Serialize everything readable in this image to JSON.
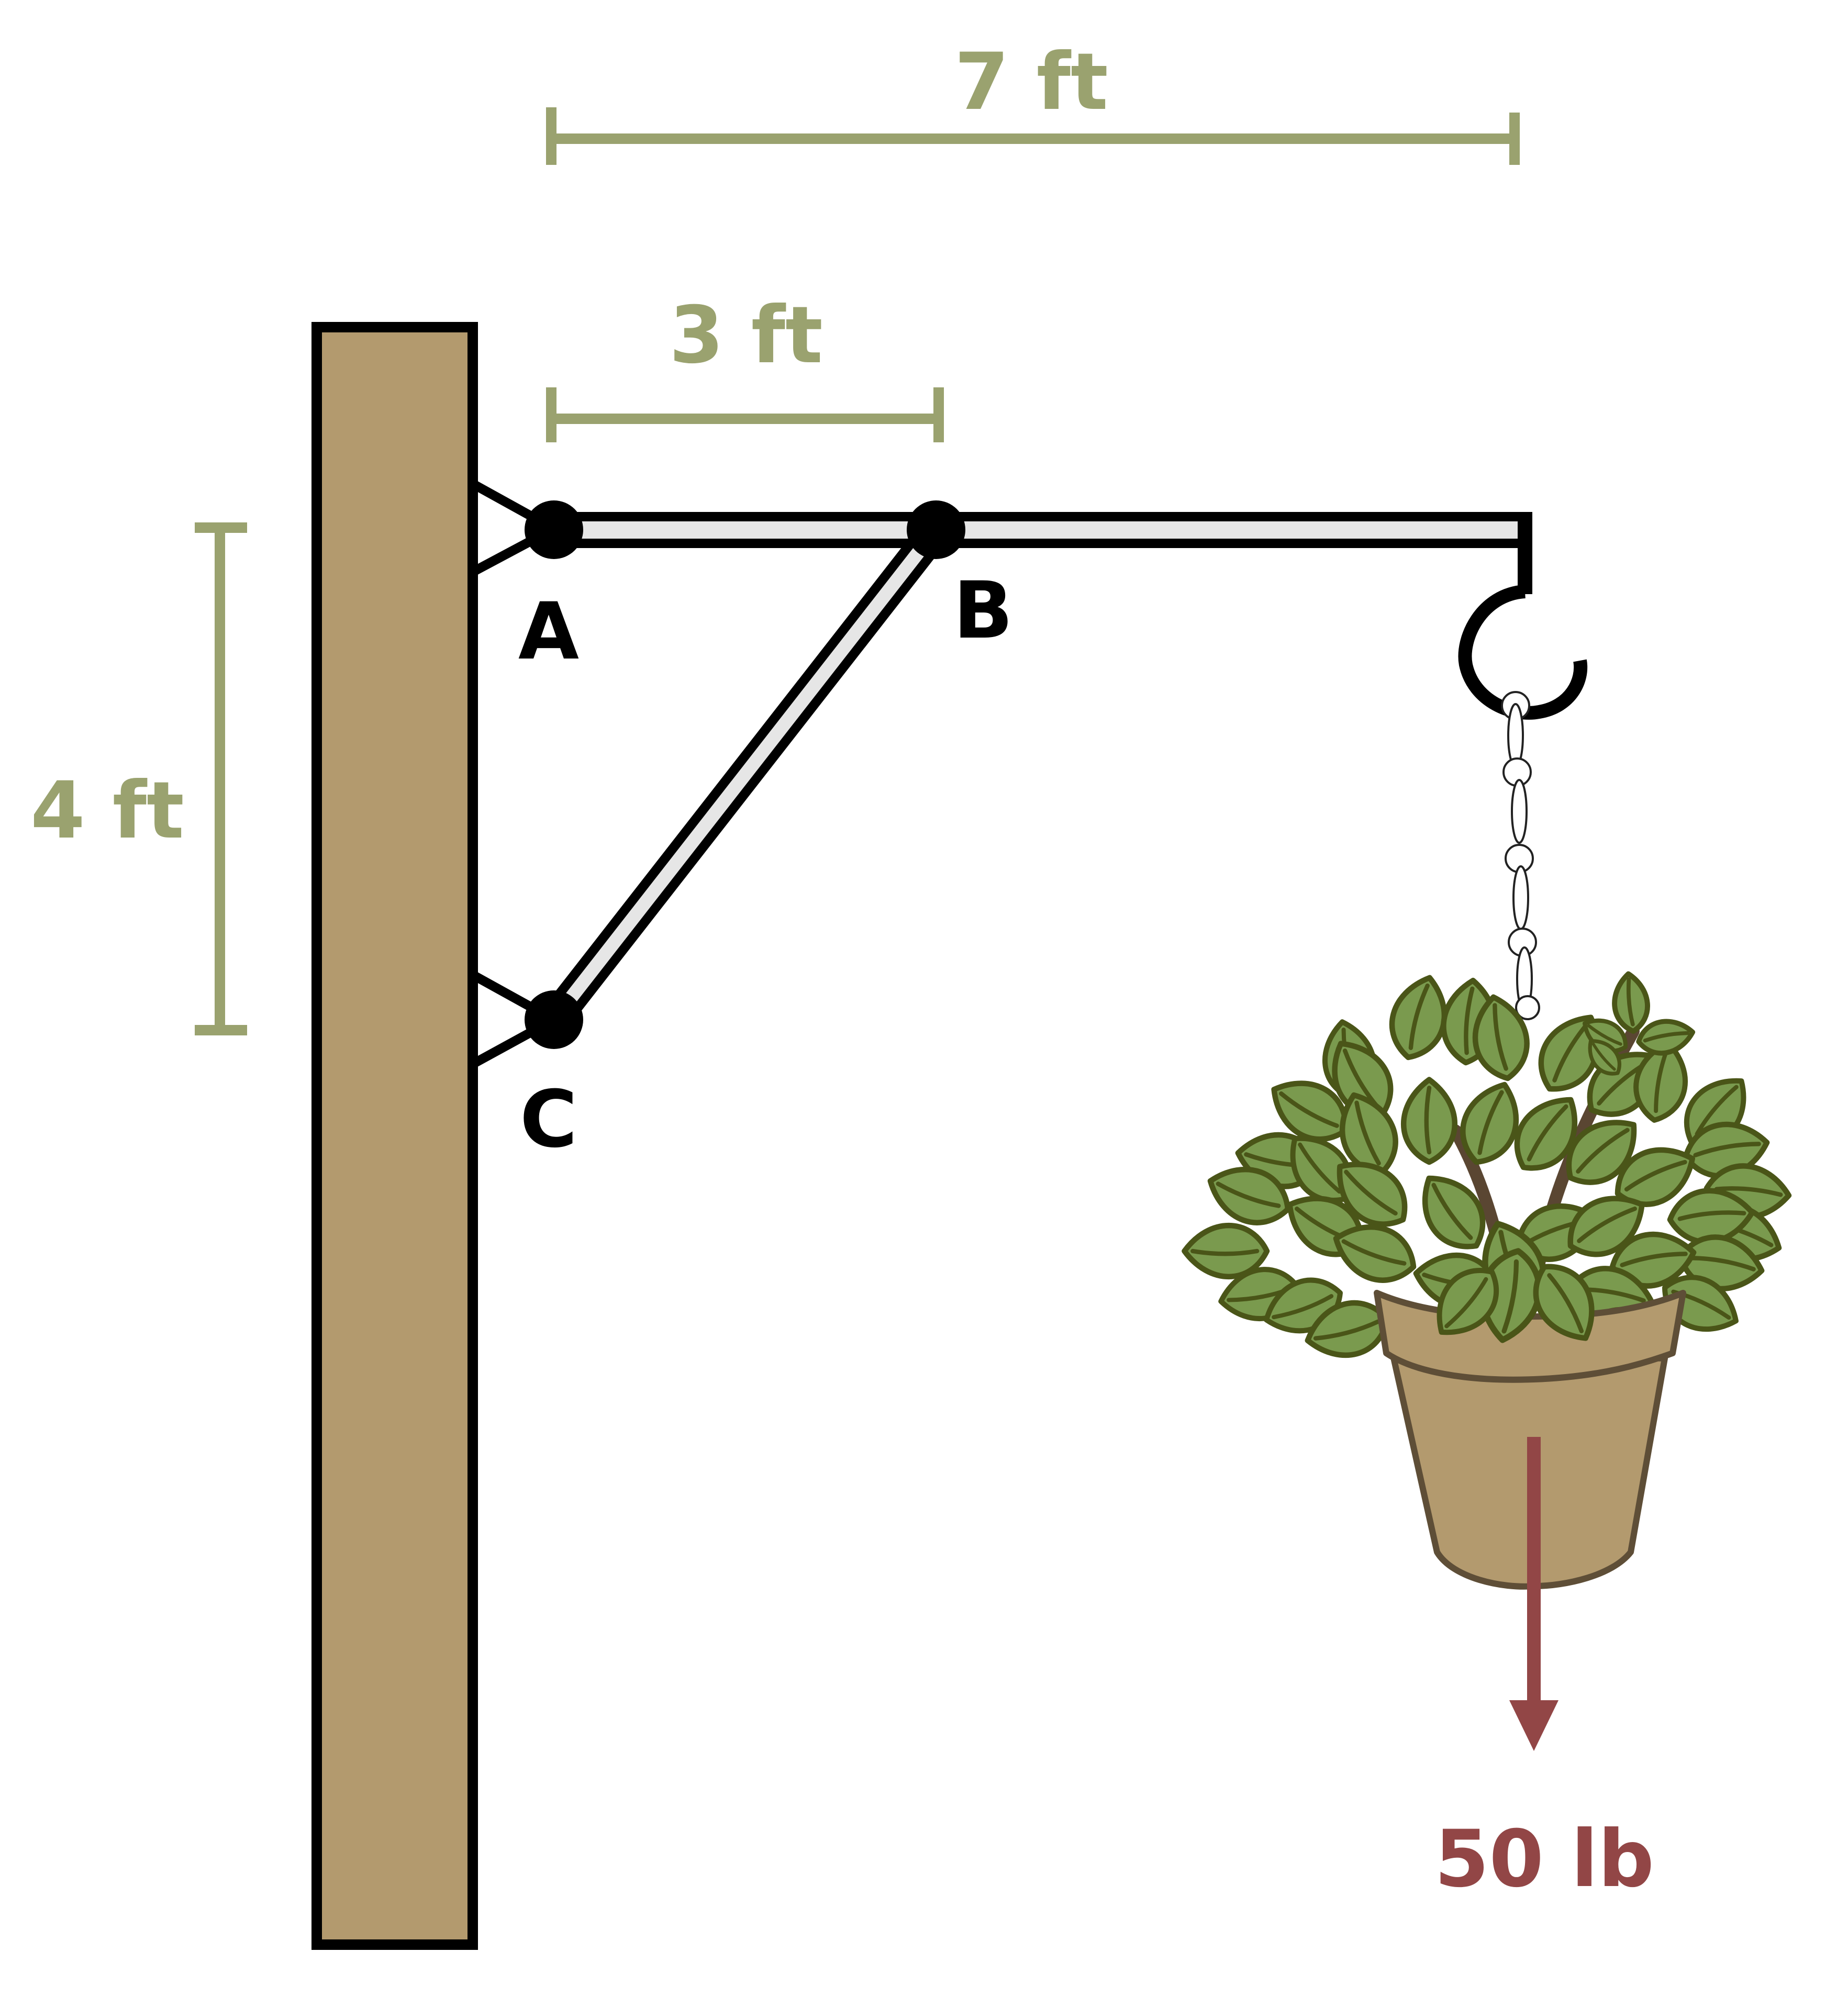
{
  "dimensions": {
    "total_length": "7 ft",
    "ab_length": "3 ft",
    "ac_height": "4 ft"
  },
  "points": {
    "a": "A",
    "b": "B",
    "c": "C"
  },
  "load": {
    "label": "50 lb"
  },
  "colors": {
    "dimension": "#9aa26f",
    "wood": "#b39a6e",
    "load": "#924646",
    "leaf": "#7a9a4e",
    "leaf_outline": "#4a5518",
    "pot": "#b39a6e",
    "pot_outline": "#5e4e37",
    "bar_fill": "#e6e6e6"
  }
}
